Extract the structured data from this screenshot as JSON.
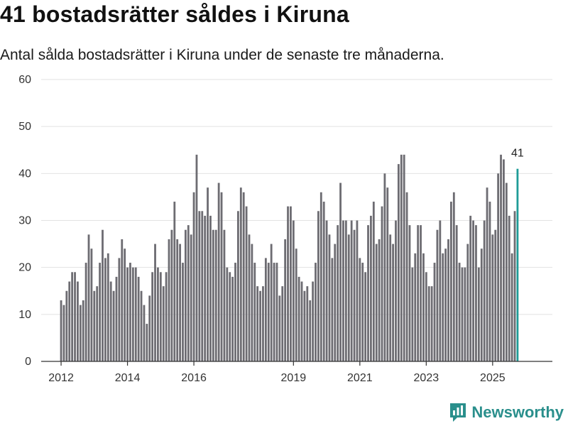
{
  "header": {
    "title": "41 bostadsrätter såldes i Kiruna",
    "subtitle": "Antal sålda bostadsrätter i Kiruna under de senaste tre månaderna."
  },
  "brand": {
    "name": "Newsworthy",
    "icon": "newsworthy-logo-icon"
  },
  "colors": {
    "bar": "#6d6c72",
    "highlight": "#1f9c97",
    "grid": "#e2e2e2",
    "brand": "#2a8f8c"
  },
  "chart_data": {
    "type": "bar",
    "title": "41 bostadsrätter såldes i Kiruna",
    "xlabel": "",
    "ylabel": "",
    "ylim": [
      0,
      60
    ],
    "yticks": [
      0,
      10,
      20,
      30,
      40,
      50,
      60
    ],
    "x_start": 2012.0,
    "x_step": 0.0833333,
    "x_range": [
      2011.4,
      2026.8
    ],
    "xticks": [
      2012,
      2014,
      2016,
      2019,
      2021,
      2023,
      2025
    ],
    "last_value_label": "41",
    "values": [
      13,
      12,
      15,
      17,
      19,
      19,
      17,
      12,
      13,
      21,
      27,
      24,
      15,
      16,
      21,
      28,
      22,
      23,
      17,
      15,
      18,
      22,
      26,
      24,
      20,
      21,
      20,
      20,
      18,
      15,
      12,
      8,
      14,
      19,
      25,
      20,
      19,
      16,
      19,
      26,
      28,
      34,
      26,
      25,
      21,
      28,
      29,
      27,
      36,
      44,
      32,
      32,
      31,
      37,
      31,
      28,
      28,
      38,
      36,
      28,
      20,
      19,
      18,
      21,
      32,
      37,
      36,
      33,
      27,
      25,
      21,
      16,
      15,
      16,
      22,
      21,
      25,
      21,
      21,
      14,
      16,
      26,
      33,
      33,
      30,
      24,
      18,
      17,
      15,
      16,
      13,
      17,
      21,
      32,
      36,
      34,
      30,
      27,
      22,
      25,
      29,
      38,
      30,
      30,
      27,
      30,
      28,
      30,
      22,
      21,
      19,
      29,
      31,
      34,
      25,
      26,
      33,
      40,
      37,
      27,
      25,
      30,
      42,
      44,
      44,
      36,
      29,
      20,
      23,
      29,
      29,
      23,
      19,
      16,
      16,
      21,
      28,
      30,
      23,
      24,
      26,
      34,
      36,
      29,
      21,
      20,
      20,
      25,
      31,
      30,
      29,
      20,
      24,
      30,
      37,
      34,
      27,
      28,
      40,
      44,
      43,
      38,
      31,
      23,
      32,
      41
    ]
  }
}
